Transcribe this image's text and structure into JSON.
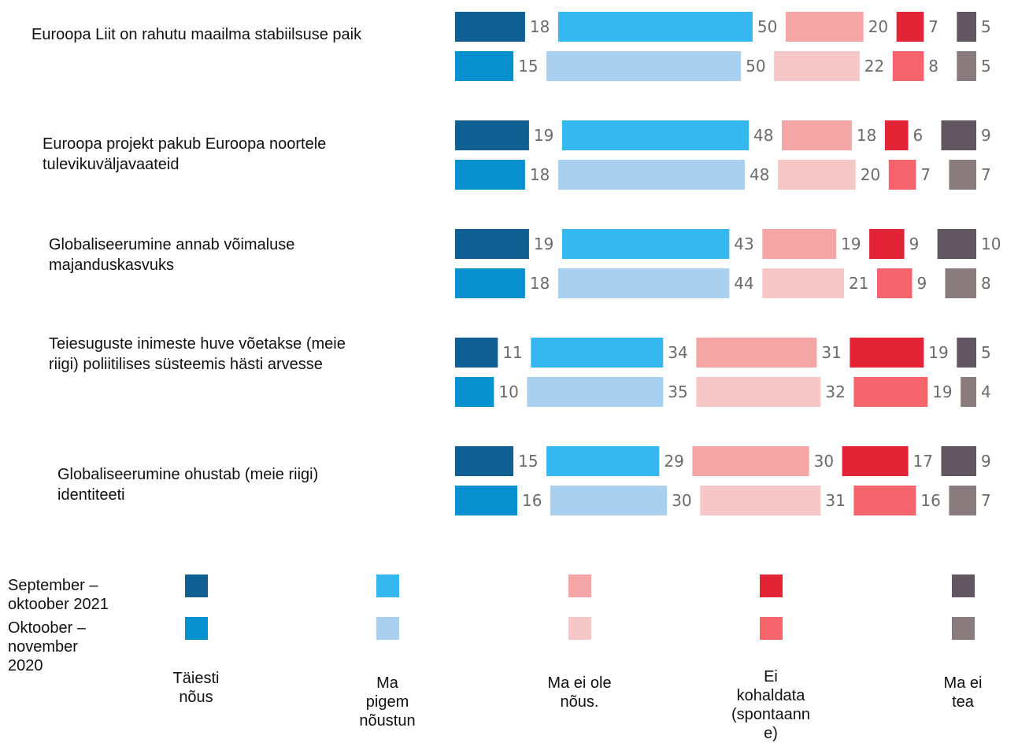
{
  "chart_data": {
    "type": "bar",
    "orientation": "horizontal-stacked",
    "categories": [
      "Euroopa Liit on rahutu maailma stabiilsuse paik",
      "Euroopa projekt pakub Euroopa noortele tulevikuväljavaateid",
      "Globaliseerumine annab võimaluse majanduskasvuks",
      "Teiesuguste inimeste huve võetakse (meie riigi) poliitilises süsteemis hästi arvesse",
      "Globaliseerumine ohustab (meie riigi) identiteeti"
    ],
    "category_lines": [
      [
        "Euroopa Liit on rahutu maailma stabiilsuse paik"
      ],
      [
        "Euroopa projekt pakub Euroopa noortele",
        "tulevikuväljavaateid"
      ],
      [
        "Globaliseerumine annab võimaluse",
        "majanduskasvuks"
      ],
      [
        "Teiesuguste inimeste huve võetakse (meie",
        "riigi) poliitilises süsteemis hästi arvesse"
      ],
      [
        "Globaliseerumine ohustab (meie riigi)",
        "identiteeti"
      ]
    ],
    "periods": [
      {
        "name": "September – oktoober 2021",
        "lines": [
          "September –",
          "oktoober 2021"
        ]
      },
      {
        "name": "Oktoober – november 2020",
        "lines": [
          "Oktoober –",
          "november",
          "2020"
        ]
      }
    ],
    "responses": [
      {
        "name": "Täiesti nõus",
        "lines": [
          "Täiesti",
          "nõus"
        ],
        "colors": [
          "#0f5f92",
          "#0891cf"
        ]
      },
      {
        "name": "Ma pigem nõustun",
        "lines": [
          "Ma",
          "pigem",
          "nõustun"
        ],
        "colors": [
          "#35b8ef",
          "#a9d1ef"
        ]
      },
      {
        "name": "Ma ei ole nõus.",
        "lines": [
          "Ma ei ole",
          "nõus."
        ],
        "colors": [
          "#f4a5a5",
          "#f6c7c7"
        ]
      },
      {
        "name": "Ei kohaldata (spontaanne)",
        "lines": [
          "Ei",
          "kohaldata",
          "(spontaann",
          "e)"
        ],
        "colors": [
          "#e32336",
          "#f5636c"
        ]
      },
      {
        "name": "Ma ei tea",
        "lines": [
          "Ma ei",
          "tea"
        ],
        "colors": [
          "#625760",
          "#8a7b7d"
        ]
      }
    ],
    "values": [
      [
        [
          18,
          50,
          20,
          7,
          5
        ],
        [
          15,
          50,
          22,
          8,
          5
        ]
      ],
      [
        [
          19,
          48,
          18,
          6,
          9
        ],
        [
          18,
          48,
          20,
          7,
          7
        ]
      ],
      [
        [
          19,
          43,
          19,
          9,
          10
        ],
        [
          18,
          44,
          21,
          9,
          8
        ]
      ],
      [
        [
          11,
          34,
          31,
          19,
          5
        ],
        [
          10,
          35,
          32,
          19,
          4
        ]
      ],
      [
        [
          15,
          29,
          30,
          17,
          9
        ],
        [
          16,
          30,
          31,
          16,
          7
        ]
      ]
    ],
    "units": "%",
    "legend_position": "bottom",
    "grid": false,
    "title": "",
    "xlabel": "",
    "ylabel": ""
  }
}
